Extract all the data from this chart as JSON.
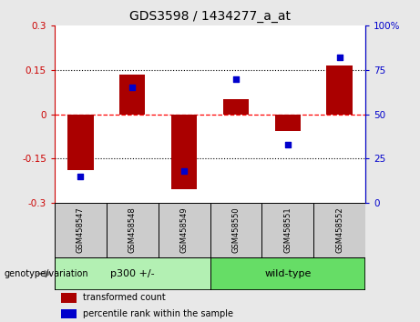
{
  "title": "GDS3598 / 1434277_a_at",
  "samples": [
    "GSM458547",
    "GSM458548",
    "GSM458549",
    "GSM458550",
    "GSM458551",
    "GSM458552"
  ],
  "bar_values": [
    -0.19,
    0.135,
    -0.255,
    0.05,
    -0.055,
    0.165
  ],
  "scatter_values": [
    15,
    65,
    18,
    70,
    33,
    82
  ],
  "groups": [
    {
      "label": "p300 +/-",
      "start": 0,
      "end": 3,
      "color": "#b3f0b3"
    },
    {
      "label": "wild-type",
      "start": 3,
      "end": 6,
      "color": "#66dd66"
    }
  ],
  "bar_color": "#AA0000",
  "scatter_color": "#0000CC",
  "left_ylim": [
    -0.3,
    0.3
  ],
  "right_ylim": [
    0,
    100
  ],
  "left_yticks": [
    -0.3,
    -0.15,
    0.0,
    0.15,
    0.3
  ],
  "right_yticks": [
    0,
    25,
    50,
    75,
    100
  ],
  "left_yticklabels": [
    "-0.3",
    "-0.15",
    "0",
    "0.15",
    "0.3"
  ],
  "right_yticklabels": [
    "0",
    "25",
    "50",
    "75",
    "100%"
  ],
  "hlines": [
    -0.15,
    0.0,
    0.15
  ],
  "hline_styles": [
    "dotted",
    "dashed_red",
    "dotted"
  ],
  "bg_color": "#e8e8e8",
  "plot_bg_color": "#ffffff",
  "genotype_label": "genotype/variation",
  "legend_items": [
    {
      "color": "#AA0000",
      "label": "transformed count"
    },
    {
      "color": "#0000CC",
      "label": "percentile rank within the sample"
    }
  ],
  "bar_width": 0.5,
  "title_fontsize": 10,
  "tick_fontsize": 7.5,
  "sample_fontsize": 6,
  "group_fontsize": 8
}
